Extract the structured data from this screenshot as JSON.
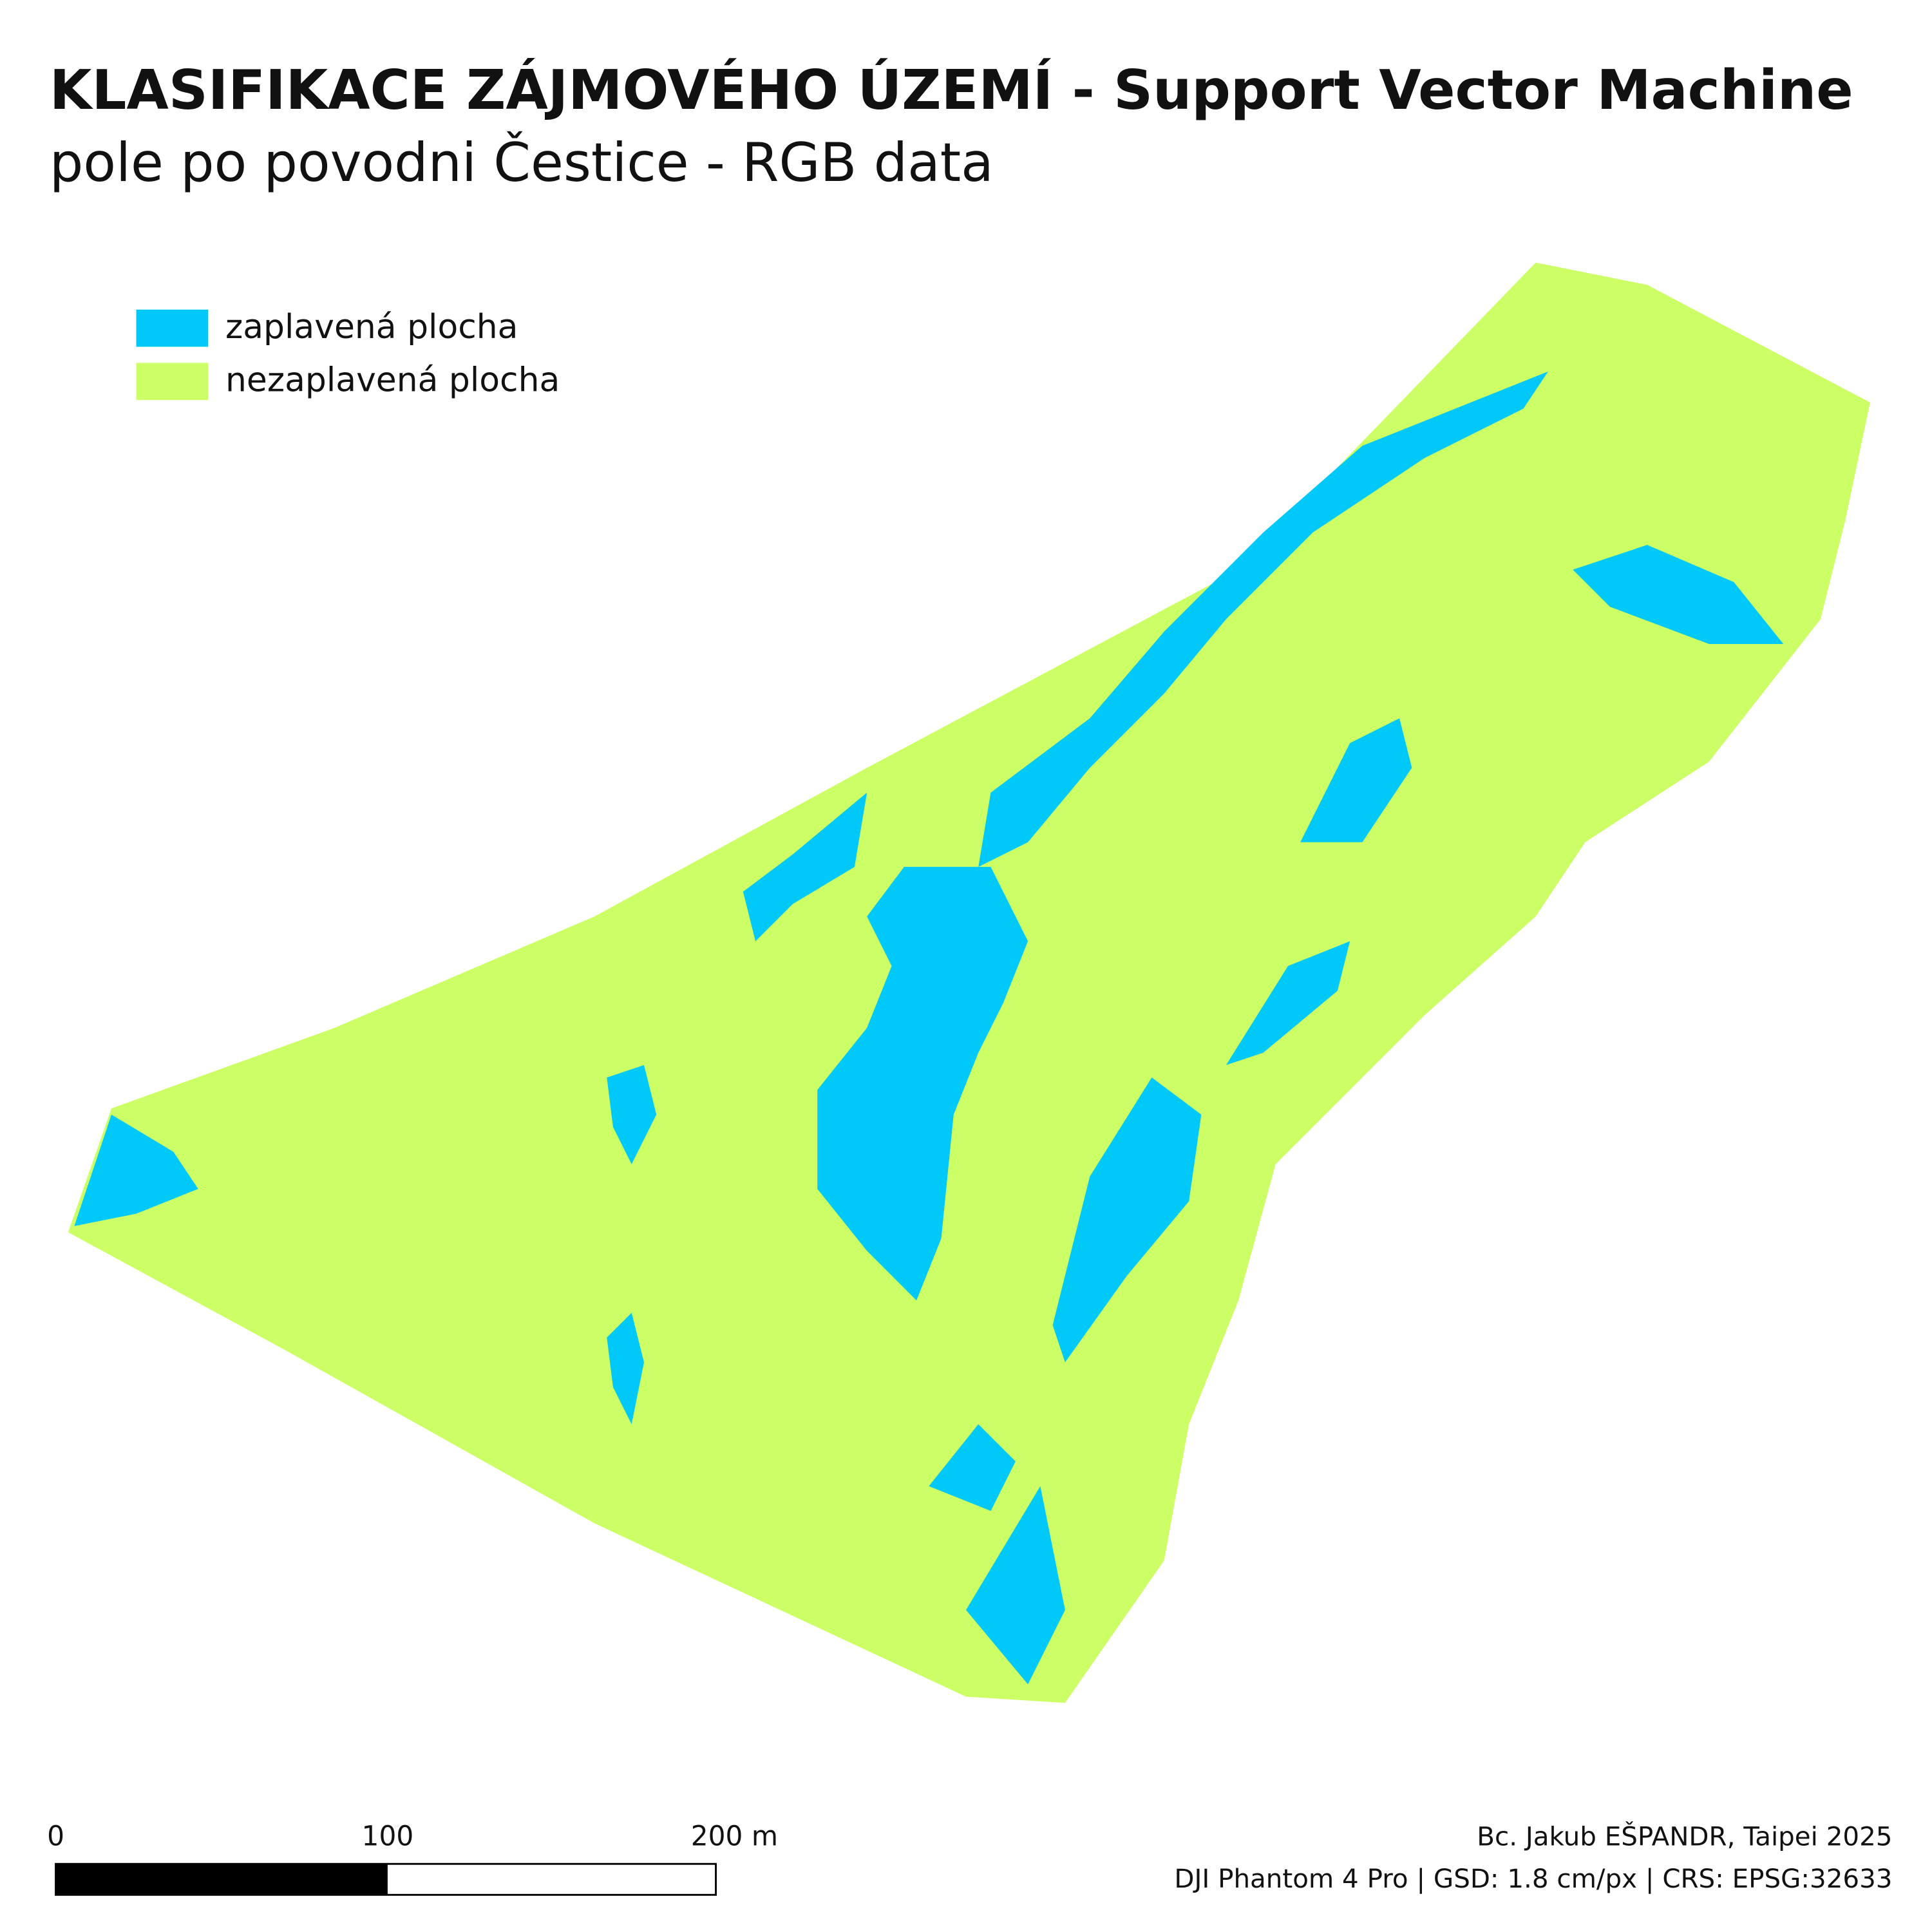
{
  "title": "KLASIFIKACE ZÁJMOVÉHO ÚZEMÍ - Support Vector Machine",
  "subtitle": "pole po povodni Čestice - RGB data",
  "legend": [
    {
      "label": "zaplavená plocha",
      "color": "#00c8f8"
    },
    {
      "label": "nezaplavená plocha",
      "color": "#ccff66"
    }
  ],
  "scale_bar": {
    "labels": [
      "0",
      "100",
      "200 m"
    ]
  },
  "credits": [
    "Bc. Jakub EŠPANDR, Taipei 2025",
    "DJI Phantom 4 Pro | GSD: 1.8 cm/px | CRS: EPSG:32633"
  ]
}
